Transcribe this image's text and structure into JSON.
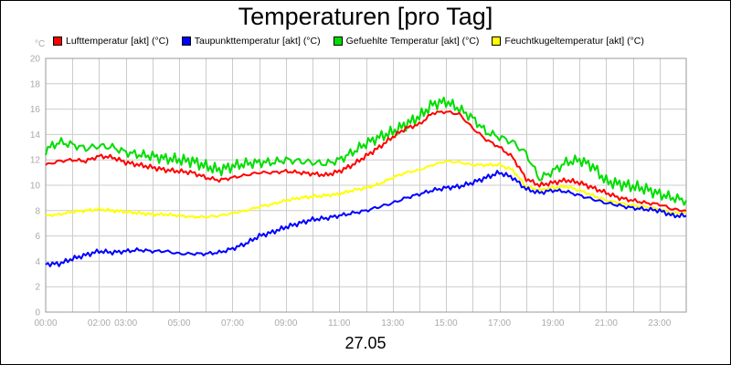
{
  "chart_data": {
    "type": "line",
    "title": "Temperaturen [pro Tag]",
    "ylabel": "°C",
    "xlabel": "27.05",
    "ylim": [
      0,
      20
    ],
    "xlim": [
      0,
      24
    ],
    "yticks": [
      "0",
      "2",
      "4",
      "6",
      "8",
      "10",
      "12",
      "14",
      "16",
      "18",
      "20"
    ],
    "xticks": [
      {
        "at": 0,
        "label": "00:00"
      },
      {
        "at": 2,
        "label": "02:00"
      },
      {
        "at": 3,
        "label": "03:00"
      },
      {
        "at": 5,
        "label": "05:00"
      },
      {
        "at": 7,
        "label": "07:00"
      },
      {
        "at": 9,
        "label": "09:00"
      },
      {
        "at": 11,
        "label": "11:00"
      },
      {
        "at": 13,
        "label": "13:00"
      },
      {
        "at": 15,
        "label": "15:00"
      },
      {
        "at": 17,
        "label": "17:00"
      },
      {
        "at": 19,
        "label": "19:00"
      },
      {
        "at": 21,
        "label": "21:00"
      },
      {
        "at": 23,
        "label": "23:00"
      }
    ],
    "grid": true,
    "legend_position": "top",
    "x": [
      0,
      0.5,
      1,
      1.5,
      2,
      2.5,
      3,
      3.5,
      4,
      4.5,
      5,
      5.5,
      6,
      6.5,
      7,
      7.5,
      8,
      8.5,
      9,
      9.5,
      10,
      10.5,
      11,
      11.5,
      12,
      12.5,
      13,
      13.5,
      14,
      14.5,
      15,
      15.5,
      16,
      16.5,
      17,
      17.5,
      18,
      18.5,
      19,
      19.5,
      20,
      20.5,
      21,
      21.5,
      22,
      22.5,
      23,
      23.5,
      24
    ],
    "series": [
      {
        "name": "Lufttemperatur [akt] (°C)",
        "color": "#ff0000",
        "values": [
          11.6,
          11.9,
          12.0,
          11.9,
          12.3,
          12.2,
          11.8,
          11.6,
          11.4,
          11.2,
          11.1,
          11.0,
          10.6,
          10.4,
          10.6,
          10.8,
          11.0,
          11.0,
          11.1,
          11.0,
          10.9,
          10.8,
          11.1,
          11.6,
          12.3,
          13.0,
          13.8,
          14.5,
          14.8,
          15.7,
          15.8,
          15.6,
          14.5,
          13.6,
          13.0,
          12.2,
          10.5,
          10.0,
          10.2,
          10.4,
          10.2,
          9.8,
          9.4,
          9.0,
          8.8,
          8.6,
          8.5,
          8.1,
          8.0
        ]
      },
      {
        "name": "Taupunkttemperatur [akt] (°C)",
        "color": "#0000ff",
        "values": [
          3.8,
          3.8,
          4.2,
          4.5,
          4.8,
          4.7,
          4.8,
          4.9,
          4.8,
          4.8,
          4.6,
          4.6,
          4.6,
          4.7,
          5.0,
          5.4,
          6.0,
          6.3,
          6.7,
          7.0,
          7.3,
          7.4,
          7.6,
          7.8,
          8.0,
          8.3,
          8.6,
          9.0,
          9.3,
          9.6,
          9.8,
          9.9,
          10.2,
          10.6,
          11.0,
          10.6,
          9.7,
          9.4,
          9.6,
          9.5,
          9.2,
          8.9,
          8.6,
          8.4,
          8.2,
          8.1,
          8.0,
          7.6,
          7.6
        ]
      },
      {
        "name": "Gefuehlte Temperatur [akt] (°C)",
        "color": "#00dd00",
        "values": [
          12.8,
          13.4,
          13.2,
          12.9,
          13.1,
          13.0,
          12.6,
          12.4,
          12.3,
          12.1,
          12.0,
          11.9,
          11.5,
          11.2,
          11.5,
          11.7,
          11.8,
          11.8,
          12.0,
          11.9,
          11.8,
          11.7,
          12.0,
          12.6,
          13.3,
          13.8,
          14.2,
          14.8,
          15.4,
          16.4,
          16.6,
          16.0,
          15.3,
          14.2,
          13.8,
          13.4,
          12.5,
          10.5,
          11.1,
          11.8,
          12.0,
          11.5,
          10.3,
          10.1,
          9.9,
          9.7,
          9.3,
          9.0,
          8.8
        ]
      },
      {
        "name": "Feuchtkugeltemperatur [akt] (°C)",
        "color": "#ffff00",
        "values": [
          7.6,
          7.7,
          7.9,
          8.0,
          8.1,
          8.0,
          7.9,
          7.8,
          7.7,
          7.7,
          7.6,
          7.5,
          7.5,
          7.6,
          7.8,
          8.0,
          8.3,
          8.5,
          8.8,
          9.0,
          9.1,
          9.2,
          9.3,
          9.6,
          9.8,
          10.1,
          10.6,
          11.0,
          11.2,
          11.6,
          11.9,
          11.8,
          11.6,
          11.6,
          11.6,
          11.2,
          9.9,
          9.6,
          9.8,
          9.9,
          9.6,
          9.2,
          8.8,
          8.6,
          8.4,
          8.3,
          8.1,
          7.8,
          7.8
        ]
      }
    ]
  }
}
